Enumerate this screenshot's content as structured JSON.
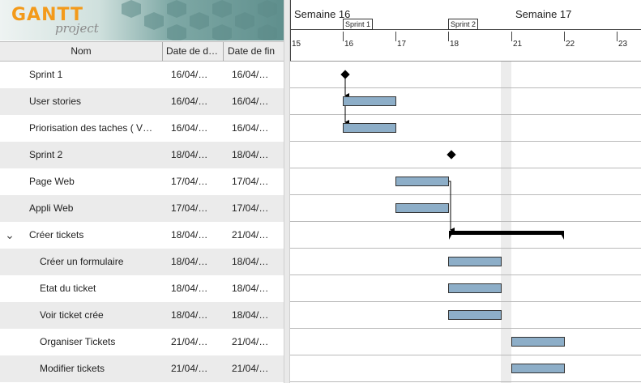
{
  "app": {
    "logo_text": "GANTT",
    "logo_sub": "project"
  },
  "table": {
    "headers": {
      "name": "Nom",
      "start": "Date de d…",
      "end": "Date de fin"
    },
    "rows": [
      {
        "name": "Sprint 1",
        "start": "16/04/…",
        "end": "16/04/…"
      },
      {
        "name": "User stories",
        "start": "16/04/…",
        "end": "16/04/…"
      },
      {
        "name": "Priorisation des taches ( V…",
        "start": "16/04/…",
        "end": "16/04/…"
      },
      {
        "name": "Sprint 2",
        "start": "18/04/…",
        "end": "18/04/…"
      },
      {
        "name": "Page Web",
        "start": "17/04/…",
        "end": "17/04/…"
      },
      {
        "name": "Appli Web",
        "start": "17/04/…",
        "end": "17/04/…"
      },
      {
        "name": "Créer tickets",
        "start": "18/04/…",
        "end": "21/04/…",
        "toggle": "⌄"
      },
      {
        "name": "Créer un formulaire",
        "start": "18/04/…",
        "end": "18/04/…"
      },
      {
        "name": "Etat du ticket",
        "start": "18/04/…",
        "end": "18/04/…"
      },
      {
        "name": "Voir ticket crée",
        "start": "18/04/…",
        "end": "18/04/…"
      },
      {
        "name": "Organiser Tickets",
        "start": "21/04/…",
        "end": "21/04/…"
      },
      {
        "name": "Modifier tickets",
        "start": "21/04/…",
        "end": "21/04/…"
      }
    ]
  },
  "chart": {
    "weeks": [
      {
        "label": "Semaine 16"
      },
      {
        "label": "Semaine 17"
      }
    ],
    "days": [
      "15",
      "16",
      "17",
      "18",
      "21",
      "22",
      "23"
    ],
    "sprint_markers": [
      {
        "label": "Sprint 1"
      },
      {
        "label": "Sprint 2"
      }
    ],
    "colors": {
      "bar": "#8daec8",
      "summary": "#000000",
      "weekend": "#ececec"
    }
  }
}
